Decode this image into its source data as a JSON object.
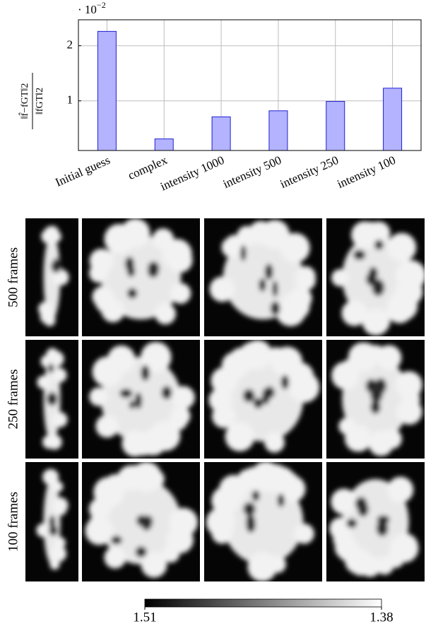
{
  "chart_data": {
    "type": "bar",
    "y_multiplier": "· 10",
    "y_multiplier_exponent": "−2",
    "ylabel_numerator": "‖f̂−fGT‖2",
    "ylabel_denominator": "‖fGT‖2",
    "categories": [
      "Initial guess",
      "complex",
      "intensity 1000",
      "intensity 500",
      "intensity 250",
      "intensity 100"
    ],
    "values": [
      2.26,
      0.31,
      0.71,
      0.82,
      0.99,
      1.23
    ],
    "color": "#b3b3ff",
    "edge_color": "#2020d0",
    "ylim": [
      0.1,
      2.47
    ],
    "yticks": [
      1,
      2
    ],
    "grid": true
  },
  "image_grid": {
    "row_labels": [
      "500 frames",
      "250 frames",
      "100 frames"
    ],
    "colorbar": {
      "lim": [
        1.51,
        1.38
      ],
      "ticks": [
        1.51,
        1.38
      ]
    }
  }
}
